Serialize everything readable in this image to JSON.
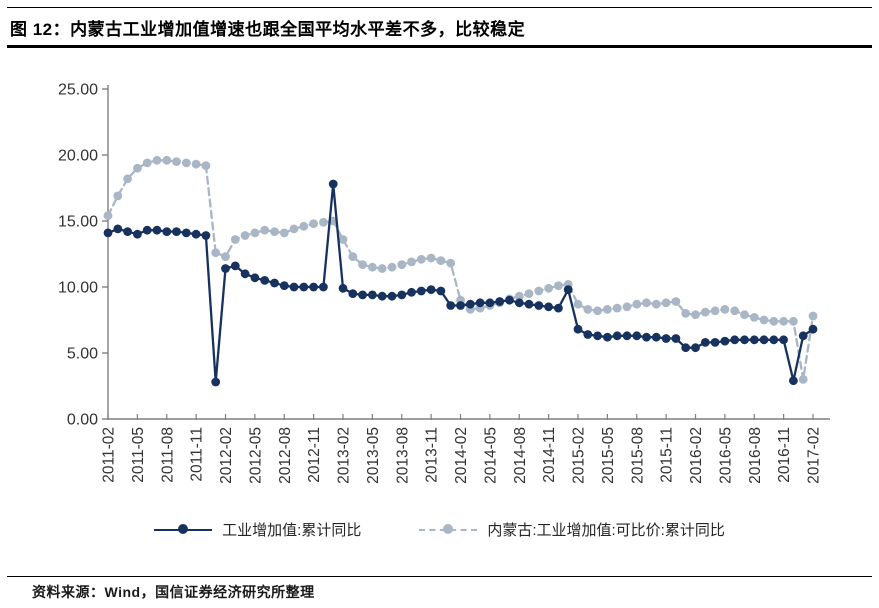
{
  "figure": {
    "title": "图 12：内蒙古工业增加值增速也跟全国平均水平差不多，比较稳定",
    "source": "资料来源：Wind，国信证券经济研究所整理"
  },
  "colors": {
    "primary": "#17325e",
    "secondary": "#a9b6c6",
    "axis": "#7f7f7f",
    "tick_text": "#333333",
    "rule": "#000000"
  },
  "chart_data": {
    "type": "line",
    "title": "",
    "xlabel": "",
    "ylabel": "",
    "ylim": [
      0,
      25
    ],
    "yticks": [
      "0.00",
      "5.00",
      "10.00",
      "15.00",
      "20.00",
      "25.00"
    ],
    "grid": false,
    "legend_position": "bottom",
    "x": [
      "2011-02",
      "2011-03",
      "2011-04",
      "2011-05",
      "2011-06",
      "2011-07",
      "2011-08",
      "2011-09",
      "2011-10",
      "2011-11",
      "2011-12",
      "2012-01",
      "2012-02",
      "2012-03",
      "2012-04",
      "2012-05",
      "2012-06",
      "2012-07",
      "2012-08",
      "2012-09",
      "2012-10",
      "2012-11",
      "2012-12",
      "2013-01",
      "2013-02",
      "2013-03",
      "2013-04",
      "2013-05",
      "2013-06",
      "2013-07",
      "2013-08",
      "2013-09",
      "2013-10",
      "2013-11",
      "2013-12",
      "2014-01",
      "2014-02",
      "2014-03",
      "2014-04",
      "2014-05",
      "2014-06",
      "2014-07",
      "2014-08",
      "2014-09",
      "2014-10",
      "2014-11",
      "2014-12",
      "2015-01",
      "2015-02",
      "2015-03",
      "2015-04",
      "2015-05",
      "2015-06",
      "2015-07",
      "2015-08",
      "2015-09",
      "2015-10",
      "2015-11",
      "2015-12",
      "2016-01",
      "2016-02",
      "2016-03",
      "2016-04",
      "2016-05",
      "2016-06",
      "2016-07",
      "2016-08",
      "2016-09",
      "2016-10",
      "2016-11",
      "2016-12",
      "2017-01",
      "2017-02"
    ],
    "x_tick_every": 3,
    "series": [
      {
        "name": "工业增加值:累计同比",
        "style": "solid",
        "color": "#17325e",
        "values": [
          14.1,
          14.4,
          14.2,
          14.0,
          14.3,
          14.3,
          14.2,
          14.2,
          14.1,
          14.0,
          13.9,
          2.8,
          11.4,
          11.6,
          11.0,
          10.7,
          10.5,
          10.3,
          10.1,
          10.0,
          10.0,
          10.0,
          10.0,
          17.8,
          9.9,
          9.5,
          9.4,
          9.4,
          9.3,
          9.3,
          9.4,
          9.6,
          9.7,
          9.8,
          9.7,
          8.6,
          8.6,
          8.7,
          8.8,
          8.8,
          8.9,
          9.0,
          8.8,
          8.7,
          8.6,
          8.5,
          8.4,
          9.8,
          6.8,
          6.4,
          6.3,
          6.2,
          6.3,
          6.3,
          6.3,
          6.2,
          6.2,
          6.1,
          6.1,
          5.4,
          5.4,
          5.8,
          5.8,
          5.9,
          6.0,
          6.0,
          6.0,
          6.0,
          6.0,
          6.0,
          2.9,
          6.3,
          6.8
        ]
      },
      {
        "name": "内蒙古:工业增加值:可比价:累计同比",
        "style": "dashed",
        "color": "#a9b6c6",
        "values": [
          15.4,
          16.9,
          18.2,
          19.0,
          19.4,
          19.6,
          19.6,
          19.5,
          19.4,
          19.3,
          19.2,
          12.6,
          12.3,
          13.6,
          13.9,
          14.1,
          14.3,
          14.2,
          14.1,
          14.4,
          14.6,
          14.8,
          14.9,
          15.0,
          13.6,
          12.3,
          11.7,
          11.5,
          11.4,
          11.5,
          11.7,
          11.9,
          12.1,
          12.2,
          12.0,
          11.8,
          9.0,
          8.3,
          8.4,
          8.6,
          8.8,
          9.1,
          9.3,
          9.5,
          9.7,
          9.9,
          10.1,
          10.2,
          8.7,
          8.3,
          8.2,
          8.3,
          8.4,
          8.5,
          8.7,
          8.8,
          8.7,
          8.8,
          8.9,
          8.0,
          7.9,
          8.1,
          8.2,
          8.3,
          8.2,
          7.9,
          7.7,
          7.5,
          7.4,
          7.4,
          7.4,
          3.0,
          7.8
        ]
      }
    ]
  }
}
